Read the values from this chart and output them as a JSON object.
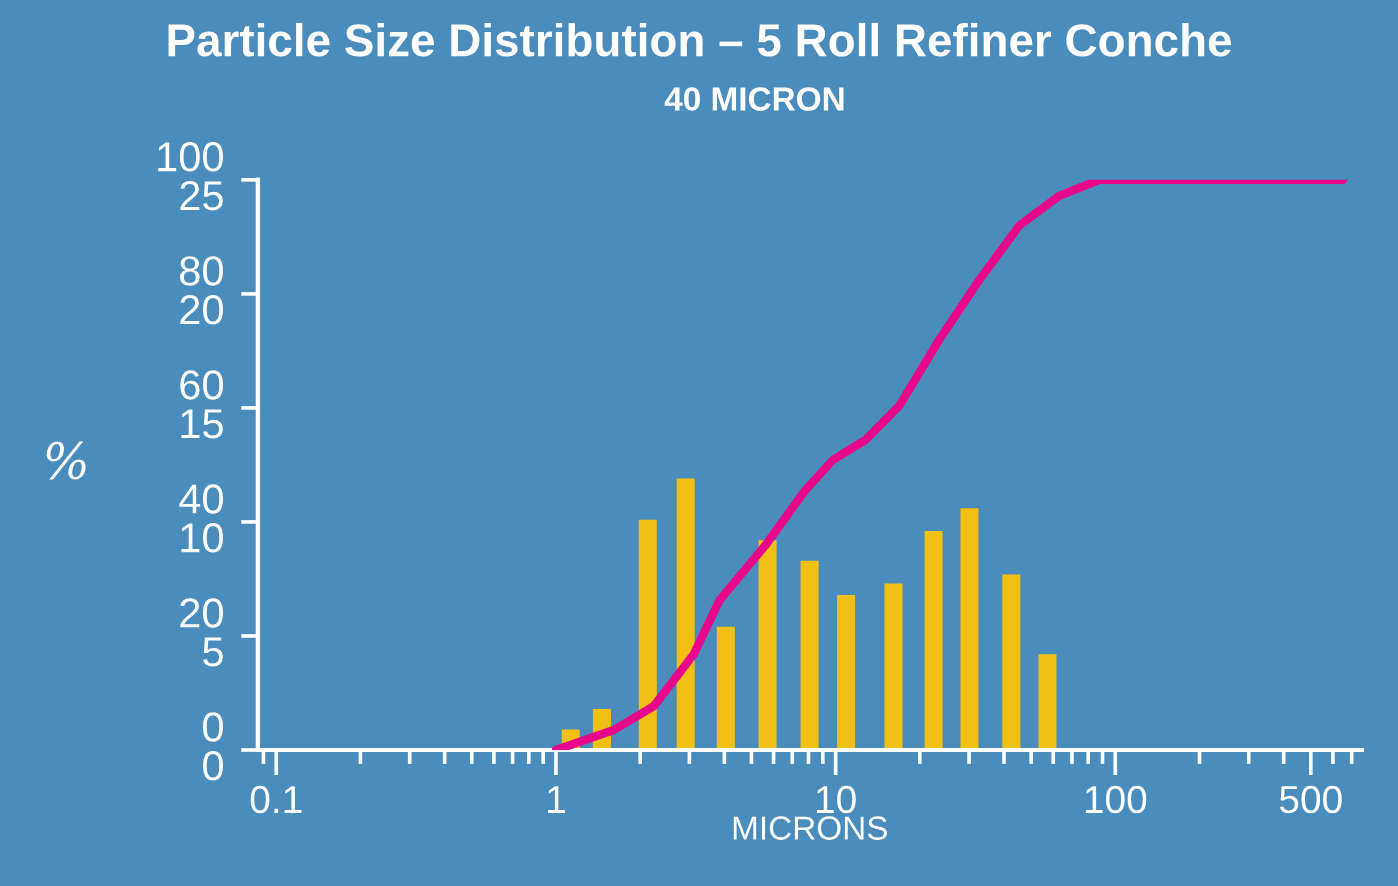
{
  "chart_data": {
    "type": "bar",
    "title": "Particle Size Distribution – 5 Roll Refiner Conche",
    "subtitle": "40 MICRON",
    "xlabel": "MICRONS",
    "ylabel": "%",
    "log": "x",
    "xlim": [
      0.086,
      760
    ],
    "xticks": [
      0.1,
      1,
      10,
      100,
      500
    ],
    "ylim": [
      0,
      100
    ],
    "yticks": [
      0,
      20,
      40,
      60,
      80,
      100
    ],
    "y2lim": [
      0,
      25
    ],
    "y2ticks": [
      0,
      5,
      10,
      15,
      20,
      25
    ],
    "grid": false,
    "series": [
      {
        "axis": "y2",
        "color": "#f2c014",
        "x": [
          1.13,
          1.46,
          2.13,
          2.91,
          4.05,
          5.71,
          8.07,
          10.9,
          16.1,
          22.4,
          30.1,
          42.5,
          57.2
        ],
        "values": [
          0.9,
          1.8,
          10.1,
          11.9,
          5.4,
          9.2,
          8.3,
          6.8,
          7.3,
          9.6,
          10.6,
          7.7,
          4.2
        ]
      },
      {
        "type": "line",
        "color": "#e8068a",
        "x": [
          1.0,
          1.61,
          2.24,
          3.11,
          3.85,
          5.63,
          7.8,
          9.8,
          12.8,
          16.9,
          23.5,
          32.7,
          45.4,
          63,
          87.7,
          652
        ],
        "values": [
          0,
          3.5,
          7.7,
          16.8,
          26.3,
          36,
          45.6,
          50.9,
          54.4,
          60.4,
          72,
          82.5,
          92,
          97.2,
          100,
          100
        ]
      }
    ]
  }
}
